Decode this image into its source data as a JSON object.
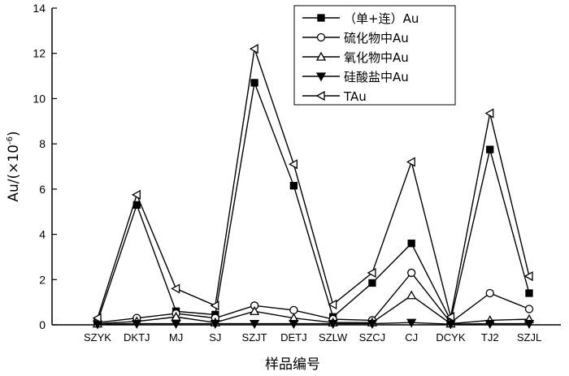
{
  "chart_data": {
    "type": "line",
    "title": "",
    "xlabel": "样品编号",
    "ylabel": "Au/(×10",
    "ylabel_exponent": "-6",
    "ylabel_suffix": ")",
    "ylim": [
      0,
      14
    ],
    "yticks": [
      0,
      2,
      4,
      6,
      8,
      10,
      12,
      14
    ],
    "categories": [
      "SZYK",
      "DKTJ",
      "MJ",
      "SJ",
      "SZJT",
      "DETJ",
      "SZLW",
      "SZCJ",
      "CJ",
      "DCYK",
      "TJ2",
      "SZJL"
    ],
    "legend_position": "top-right",
    "grid": false,
    "series": [
      {
        "name": "（单+连）Au",
        "marker": "square-filled",
        "values": [
          0.15,
          5.3,
          0.6,
          0.45,
          10.7,
          6.15,
          0.35,
          1.85,
          3.6,
          0.2,
          7.75,
          1.4
        ]
      },
      {
        "name": "硫化物中Au",
        "marker": "circle-open",
        "values": [
          0.1,
          0.3,
          0.5,
          0.3,
          0.85,
          0.65,
          0.25,
          0.2,
          2.3,
          0.1,
          1.4,
          0.7
        ]
      },
      {
        "name": "氧化物中Au",
        "marker": "triangle-up-open",
        "values": [
          0.05,
          0.15,
          0.35,
          0.1,
          0.6,
          0.3,
          0.1,
          0.1,
          1.3,
          0.05,
          0.2,
          0.25
        ]
      },
      {
        "name": "硅酸盐中Au",
        "marker": "triangle-down-filled",
        "values": [
          0.03,
          0.05,
          0.05,
          0.05,
          0.05,
          0.05,
          0.05,
          0.05,
          0.1,
          0.03,
          0.05,
          0.05
        ]
      },
      {
        "name": "TAu",
        "marker": "triangle-left-open",
        "values": [
          0.3,
          5.75,
          1.6,
          0.85,
          12.2,
          7.1,
          0.9,
          2.3,
          7.2,
          0.35,
          9.35,
          2.15
        ]
      }
    ]
  }
}
